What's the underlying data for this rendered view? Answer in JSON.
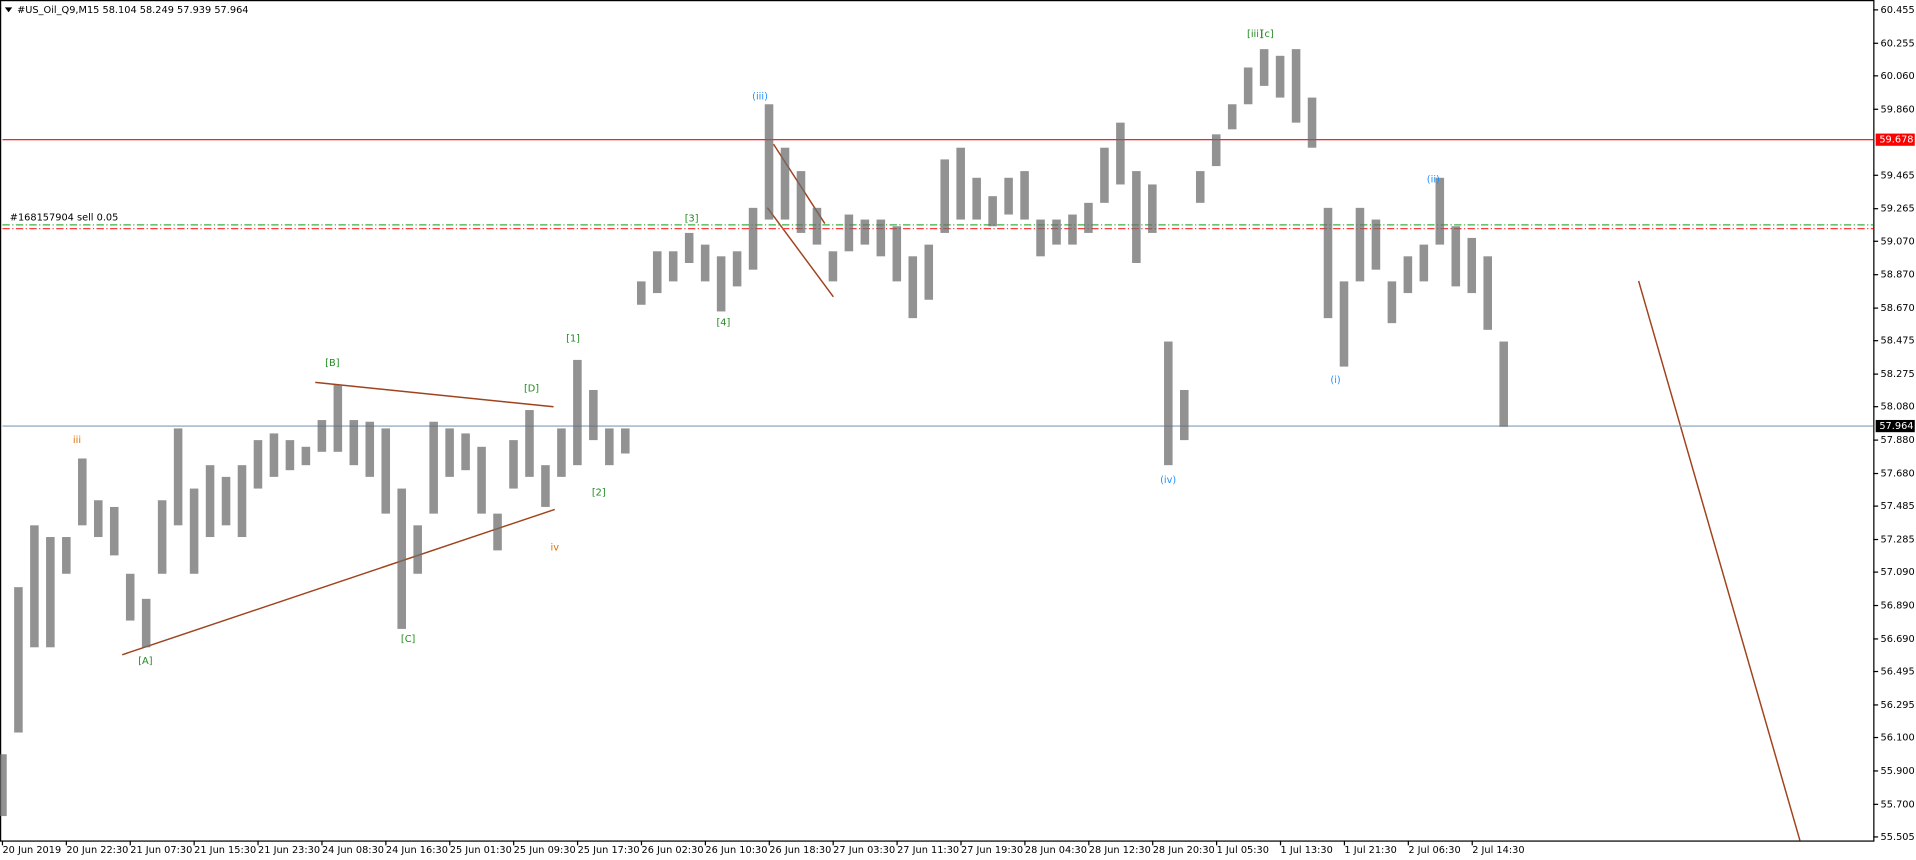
{
  "chart_data": {
    "type": "ohlc",
    "title": "#US_Oil_Q9,M15  58.104 58.249 57.939 57.964",
    "color": "#6e6e6e",
    "high": [
      56.0,
      57.0,
      57.37,
      57.3,
      57.3,
      57.77,
      57.52,
      57.48,
      57.08,
      56.93,
      57.52,
      57.95,
      57.59,
      57.73,
      57.66,
      57.73,
      57.88,
      57.92,
      57.88,
      57.84,
      58.0,
      58.21,
      58.0,
      57.99,
      57.95,
      57.59,
      57.37,
      57.99,
      57.95,
      57.92,
      57.84,
      57.44,
      57.88,
      58.06,
      57.73,
      57.95,
      58.36,
      58.18,
      57.95,
      57.95,
      58.83,
      59.01,
      59.01,
      59.12,
      59.05,
      58.98,
      59.01,
      59.27,
      59.89,
      59.63,
      59.49,
      59.27,
      59.01,
      59.23,
      59.2,
      59.2,
      59.16,
      58.98,
      59.05,
      59.56,
      59.63,
      59.45,
      59.34,
      59.45,
      59.49,
      59.2,
      59.2,
      59.23,
      59.3,
      59.63,
      59.78,
      59.49,
      59.41,
      58.47,
      58.18,
      59.49,
      59.71,
      59.89,
      60.11,
      60.22,
      60.18,
      60.22,
      59.93,
      59.27,
      58.83,
      59.27,
      59.2,
      58.83,
      58.98,
      59.05,
      59.45,
      59.16,
      59.09,
      58.98,
      58.47
    ],
    "low": [
      55.63,
      56.13,
      56.64,
      56.64,
      57.08,
      57.37,
      57.3,
      57.19,
      56.8,
      56.64,
      57.08,
      57.37,
      57.08,
      57.3,
      57.37,
      57.3,
      57.59,
      57.66,
      57.7,
      57.73,
      57.81,
      57.81,
      57.73,
      57.66,
      57.44,
      56.75,
      57.08,
      57.44,
      57.66,
      57.7,
      57.44,
      57.22,
      57.59,
      57.66,
      57.48,
      57.66,
      57.73,
      57.88,
      57.73,
      57.8,
      58.69,
      58.76,
      58.83,
      58.94,
      58.83,
      58.65,
      58.8,
      58.9,
      59.2,
      59.2,
      59.12,
      59.05,
      58.83,
      59.01,
      59.05,
      58.98,
      58.83,
      58.61,
      58.72,
      59.12,
      59.2,
      59.2,
      59.16,
      59.23,
      59.2,
      58.98,
      59.05,
      59.05,
      59.12,
      59.3,
      59.41,
      58.94,
      59.12,
      57.73,
      57.88,
      59.3,
      59.52,
      59.74,
      59.89,
      60.0,
      59.93,
      59.78,
      59.63,
      58.61,
      58.32,
      58.83,
      58.9,
      58.58,
      58.76,
      58.83,
      59.05,
      58.8,
      58.76,
      58.54,
      57.96
    ],
    "xlim": [
      0,
      117.1
    ],
    "xticks": [
      {
        "value": 0,
        "label": "20 Jun 2019"
      },
      {
        "value": 4,
        "label": "20 Jun 22:30"
      },
      {
        "value": 8,
        "label": "21 Jun 07:30"
      },
      {
        "value": 12,
        "label": "21 Jun 15:30"
      },
      {
        "value": 16,
        "label": "21 Jun 23:30"
      },
      {
        "value": 20,
        "label": "24 Jun 08:30"
      },
      {
        "value": 24,
        "label": "24 Jun 16:30"
      },
      {
        "value": 28,
        "label": "25 Jun 01:30"
      },
      {
        "value": 32,
        "label": "25 Jun 09:30"
      },
      {
        "value": 36,
        "label": "25 Jun 17:30"
      },
      {
        "value": 40,
        "label": "26 Jun 02:30"
      },
      {
        "value": 44,
        "label": "26 Jun 10:30"
      },
      {
        "value": 48,
        "label": "26 Jun 18:30"
      },
      {
        "value": 52,
        "label": "27 Jun 03:30"
      },
      {
        "value": 56,
        "label": "27 Jun 11:30"
      },
      {
        "value": 60,
        "label": "27 Jun 19:30"
      },
      {
        "value": 64,
        "label": "28 Jun 04:30"
      },
      {
        "value": 68,
        "label": "28 Jun 12:30"
      },
      {
        "value": 72,
        "label": "28 Jun 20:30"
      },
      {
        "value": 76,
        "label": "1 Jul 05:30"
      },
      {
        "value": 80,
        "label": "1 Jul 13:30"
      },
      {
        "value": 84,
        "label": "1 Jul 21:30"
      },
      {
        "value": 88,
        "label": "2 Jul 06:30"
      },
      {
        "value": 92,
        "label": "2 Jul 14:30"
      }
    ],
    "ylim": [
      55.484,
      60.514
    ],
    "yticks": [
      60.455,
      60.255,
      {
        "value": 60.06,
        "label": "60.060"
      },
      {
        "value": 59.86,
        "label": "59.860"
      },
      59.465,
      59.265,
      {
        "value": 59.07,
        "label": "59.070"
      },
      {
        "value": 58.87,
        "label": "58.870"
      },
      {
        "value": 58.67,
        "label": "58.670"
      },
      58.475,
      58.275,
      {
        "value": 58.08,
        "label": "58.080"
      },
      {
        "value": 57.88,
        "label": "57.880"
      },
      {
        "value": 57.68,
        "label": "57.680"
      },
      57.485,
      57.285,
      {
        "value": 57.09,
        "label": "57.090"
      },
      {
        "value": 56.89,
        "label": "56.890"
      },
      {
        "value": 56.69,
        "label": "56.690"
      },
      56.495,
      56.295,
      {
        "value": 56.1,
        "label": "56.100"
      },
      {
        "value": 55.9,
        "label": "55.900"
      },
      {
        "value": 55.7,
        "label": "55.700"
      },
      55.505
    ],
    "price_levels": [
      {
        "value": 59.678,
        "color": "#ff0000"
      },
      {
        "value": 57.964,
        "color": "#7f9db9"
      }
    ],
    "order_lines": [
      {
        "value": 59.168,
        "color": "#3cb043",
        "label": "#168157904 sell 0.05"
      },
      {
        "value": 59.146,
        "color": "#ff3b3b"
      }
    ],
    "annotations": [
      {
        "text": "iii",
        "color": "#e07000"
      },
      {
        "text": "[A]",
        "color": "#228b22"
      },
      {
        "text": "[B]",
        "color": "#228b22"
      },
      {
        "text": "[C]",
        "color": "#228b22"
      },
      {
        "text": "[D]",
        "color": "#228b22"
      },
      {
        "text": "iv",
        "color": "#e07000"
      },
      {
        "text": "[1]",
        "color": "#228b22"
      },
      {
        "text": "[2]",
        "color": "#228b22"
      },
      {
        "text": "[3]",
        "color": "#228b22"
      },
      {
        "text": "[4]",
        "color": "#228b22"
      },
      {
        "text": "(iii)",
        "color": "#1e90ff"
      },
      {
        "text": "(iv)",
        "color": "#1e90ff"
      },
      {
        "text": "[iii]",
        "color": "#228b22"
      },
      {
        "text": "[c]",
        "color": "#228b22"
      },
      {
        "text": "(i)",
        "color": "#1e90ff"
      },
      {
        "text": "(ii)",
        "color": "#1e90ff"
      }
    ]
  }
}
